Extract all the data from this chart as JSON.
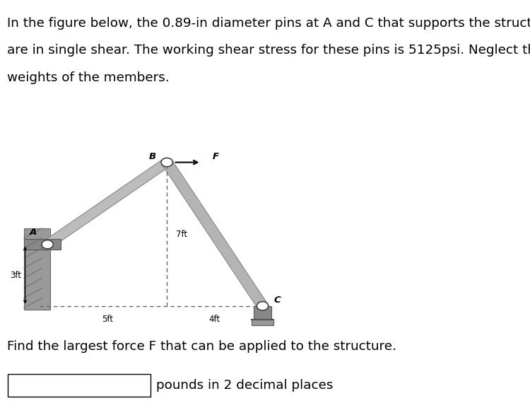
{
  "text_line1": "In the figure below, the 0.89-in diameter pins at A and C that supports the structure",
  "text_line2": "are in single shear. The working shear stress for these pins is 5125psi. Neglect the",
  "text_line3": "weights of the members.",
  "find_text": "Find the largest force F that can be applied to the structure.",
  "answer_label": "pounds in 2 decimal places",
  "fig_bg": "#ffffff",
  "diagram_bg": "#cfc0a8",
  "label_A": "A",
  "label_B": "B",
  "label_C": "C",
  "label_F": "F",
  "dim_3ft": "3ft",
  "dim_5ft": "5ft",
  "dim_4ft": "4ft",
  "dim_7ft": "7ft",
  "member_color": "#b0b0b0",
  "member_edge": "#888888",
  "dashed_color": "#666666",
  "support_color": "#888888",
  "pin_color": "#ffffff",
  "pin_edge": "#333333"
}
